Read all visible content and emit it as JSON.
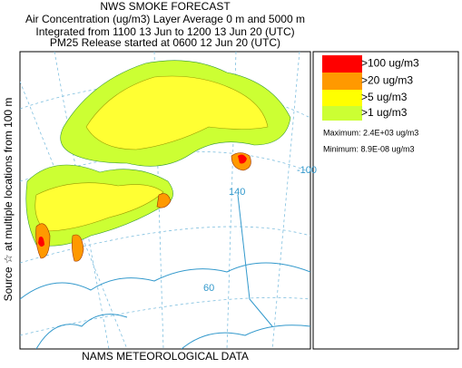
{
  "header": {
    "title": "NWS SMOKE FORECAST",
    "lines": [
      "Air Concentration (ug/m3) Layer Average    0 m and  5000 m",
      "Integrated from 1100 13 Jun to 1200 13 Jun 20 (UTC)",
      "PM25 Release started at 0600 12 Jun 20 (UTC)"
    ]
  },
  "side_label": "Source ☆  at multiple locations   from   100 m",
  "legend": {
    "items": [
      ">100 ug/m3",
      ">20 ug/m3",
      ">5 ug/m3",
      ">1 ug/m3"
    ],
    "maximum": "Maximum: 2.4E+03 ug/m3",
    "minimum": "Minimum: 8.9E-08 ug/m3"
  },
  "map_labels": [
    "140",
    "-100",
    "60"
  ],
  "footer": "NAMS METEOROLOGICAL DATA"
}
